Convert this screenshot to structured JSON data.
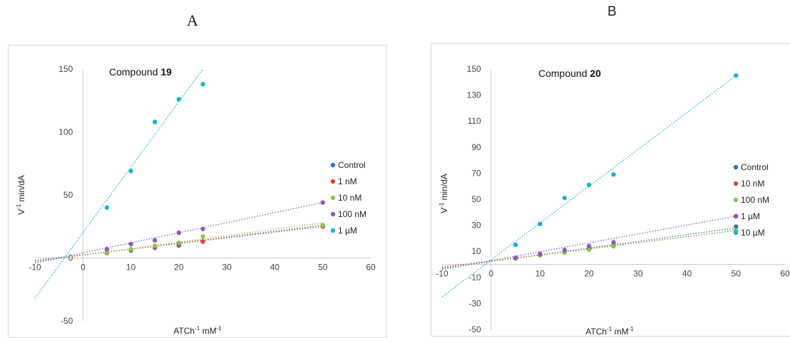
{
  "panels": [
    {
      "letter": "A",
      "compound_prefix": "Compound ",
      "compound_number": "19",
      "ylabel_sup": "-1",
      "ylabel_rest": " min/dA",
      "ylabel_base": "V",
      "xlabel_base": "ATCh",
      "xlabel_sup1": "-1",
      "xlabel_mid": " mM",
      "xlabel_sup2": "-1"
    },
    {
      "letter": "B",
      "compound_prefix": "Compound ",
      "compound_number": "20",
      "ylabel_sup": "-1",
      "ylabel_rest": " min/dA",
      "ylabel_base": "V",
      "xlabel_base": "ATCh",
      "xlabel_sup1": "-1",
      "xlabel_mid": " mM",
      "xlabel_sup2": "-1"
    }
  ],
  "chart_data": [
    {
      "type": "scatter",
      "title": "",
      "annotation": "Compound 19",
      "xlabel": "ATCh-1 mM-1",
      "ylabel": "V-1 min/dA",
      "xlim": [
        -10,
        60
      ],
      "ylim": [
        -50,
        150
      ],
      "x_ticks": [
        -10,
        0,
        10,
        20,
        30,
        40,
        50,
        60
      ],
      "y_ticks": [
        -50,
        0,
        50,
        100,
        150
      ],
      "grid": false,
      "legend": "right",
      "trendlines": "linear, dotted",
      "series": [
        {
          "name": "Control",
          "color": "#2e75b6",
          "x": [
            5,
            10,
            15,
            20,
            25,
            50
          ],
          "y": [
            4,
            6,
            8,
            10,
            13,
            25
          ],
          "fit": {
            "x0": -10,
            "y0": -2,
            "x1": 50,
            "y1": 25
          }
        },
        {
          "name": "1 nM",
          "color": "#e0453a",
          "x": [
            5,
            10,
            15,
            20,
            25,
            50
          ],
          "y": [
            4,
            6.5,
            8.5,
            11,
            13,
            25
          ],
          "fit": {
            "x0": -10,
            "y0": -2.5,
            "x1": 50,
            "y1": 26
          }
        },
        {
          "name": "10 nM",
          "color": "#8bc34a",
          "x": [
            5,
            10,
            15,
            20,
            25,
            50
          ],
          "y": [
            4.5,
            7,
            9.5,
            12,
            17,
            26
          ],
          "fit": {
            "x0": -10,
            "y0": -3,
            "x1": 50,
            "y1": 28
          }
        },
        {
          "name": "100 nM",
          "color": "#8e5ab5",
          "x": [
            5,
            10,
            15,
            20,
            25,
            50
          ],
          "y": [
            7,
            11,
            14,
            20,
            23,
            44
          ],
          "fit": {
            "x0": -10,
            "y0": -4,
            "x1": 50,
            "y1": 44
          }
        },
        {
          "name": "1 µM",
          "color": "#17b5c9",
          "x": [
            5,
            10,
            15,
            20,
            25
          ],
          "y": [
            40,
            69,
            108,
            126,
            138
          ],
          "fit": {
            "x0": -10,
            "y0": -32,
            "x1": 25,
            "y1": 150
          }
        }
      ]
    },
    {
      "type": "scatter",
      "title": "",
      "annotation": "Compound 20",
      "xlabel": "ATCh-1 mM-1",
      "ylabel": "V-1 min/dA",
      "xlim": [
        -10,
        60
      ],
      "ylim": [
        -50,
        150
      ],
      "x_ticks": [
        -10,
        0,
        10,
        20,
        30,
        40,
        50,
        60
      ],
      "y_ticks": [
        -50,
        -30,
        -10,
        10,
        30,
        50,
        70,
        90,
        110,
        130,
        150
      ],
      "grid": false,
      "legend": "right",
      "trendlines": "linear, dotted",
      "series": [
        {
          "name": "Control",
          "color": "#2e75b6",
          "x": [
            5,
            10,
            15,
            20,
            25,
            50
          ],
          "y": [
            5,
            7,
            9.5,
            12,
            15,
            29
          ],
          "fit": {
            "x0": -10,
            "y0": -3,
            "x1": 50,
            "y1": 28
          }
        },
        {
          "name": "10 nM",
          "color": "#e0453a",
          "x": [
            5,
            10,
            15,
            20,
            25,
            50
          ],
          "y": [
            4.5,
            7,
            9,
            11.5,
            14,
            26
          ],
          "fit": {
            "x0": -10,
            "y0": -2,
            "x1": 50,
            "y1": 26
          }
        },
        {
          "name": "100 nM",
          "color": "#8bc34a",
          "x": [
            5,
            10,
            15,
            20,
            25,
            50
          ],
          "y": [
            4.5,
            7,
            9,
            11.5,
            14,
            26
          ],
          "fit": {
            "x0": -10,
            "y0": -2.5,
            "x1": 50,
            "y1": 26
          }
        },
        {
          "name": "1 µM",
          "color": "#8e5ab5",
          "x": [
            5,
            10,
            15,
            20,
            25,
            50
          ],
          "y": [
            5,
            8,
            11,
            14,
            17,
            37
          ],
          "fit": {
            "x0": -10,
            "y0": -4,
            "x1": 50,
            "y1": 37
          }
        },
        {
          "name": "10 µM",
          "color": "#17b5c9",
          "x": [
            5,
            10,
            15,
            20,
            25,
            50
          ],
          "y": [
            15,
            31,
            51,
            61,
            69,
            145
          ],
          "fit": {
            "x0": -10,
            "y0": -25,
            "x1": 50,
            "y1": 145
          }
        }
      ]
    }
  ]
}
